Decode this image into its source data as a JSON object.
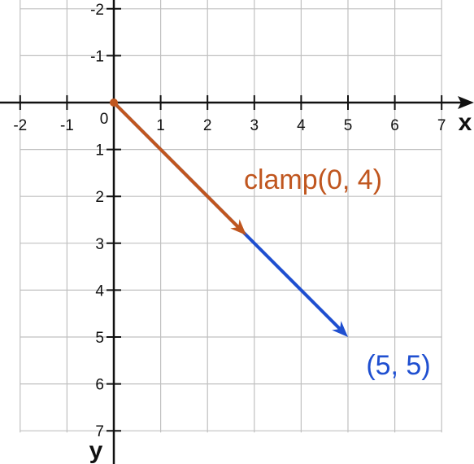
{
  "axes": {
    "x_name": "x",
    "y_name": "y",
    "origin_label": "0",
    "x_ticks": [
      -2,
      -1,
      1,
      2,
      3,
      4,
      5,
      6,
      7
    ],
    "y_ticks": [
      -2,
      -1,
      1,
      2,
      3,
      4,
      5,
      6,
      7
    ],
    "x_range": [
      -2,
      7
    ],
    "y_range": [
      -2,
      7
    ],
    "y_direction": "down"
  },
  "grid": true,
  "colors": {
    "grid": "#c0c0c0",
    "axis": "#111111",
    "clamped_vector": "#c0561f",
    "full_vector": "#1f4fd0"
  },
  "vectors": {
    "full": {
      "label": "(5, 5)",
      "from": [
        0,
        0
      ],
      "to": [
        5,
        5
      ]
    },
    "clamped": {
      "label": "clamp(0, 4)",
      "from": [
        0,
        0
      ],
      "to": [
        2.83,
        2.83
      ]
    }
  }
}
